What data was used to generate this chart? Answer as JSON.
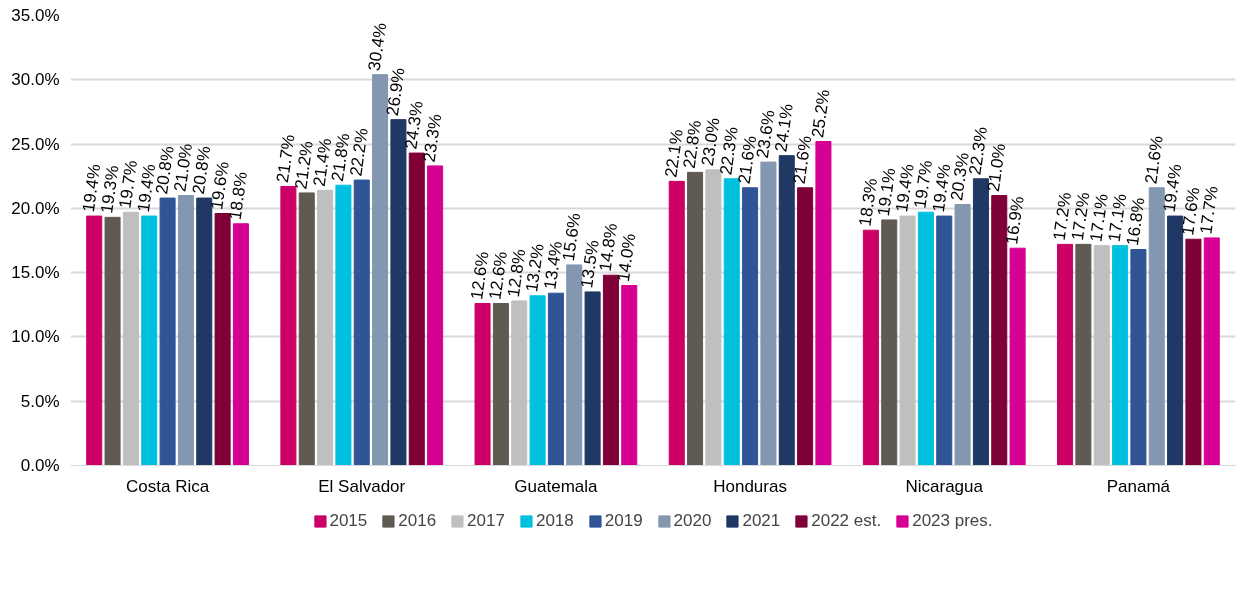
{
  "chart_data": {
    "type": "bar",
    "categories": [
      "Costa Rica",
      "El Salvador",
      "Guatemala",
      "Honduras",
      "Nicaragua",
      "Panamá"
    ],
    "ylim": [
      0,
      35
    ],
    "yticks": [
      {
        "value": 0,
        "label": "0.0%"
      },
      {
        "value": 5,
        "label": "5.0%"
      },
      {
        "value": 10,
        "label": "10.0%"
      },
      {
        "value": 15,
        "label": "15.0%"
      },
      {
        "value": 20,
        "label": "20.0%"
      },
      {
        "value": 25,
        "label": "25.0%"
      },
      {
        "value": 30,
        "label": "30.0%"
      },
      {
        "value": 35,
        "label": "35.0%"
      }
    ],
    "grid": "y",
    "legend": "bottom",
    "series": [
      {
        "name": "2015",
        "color": "#cc0066",
        "values": [
          19.4,
          21.7,
          12.6,
          22.1,
          18.3,
          17.2
        ],
        "value_labels": [
          "19.4%",
          "21.7%",
          "12.6%",
          "22.1%",
          "18.3%",
          "17.2%"
        ]
      },
      {
        "name": "2016",
        "color": "#5f5b52",
        "values": [
          19.3,
          21.2,
          12.6,
          22.8,
          19.1,
          17.2
        ],
        "value_labels": [
          "19.3%",
          "21.2%",
          "12.6%",
          "22.8%",
          "19.1%",
          "17.2%"
        ]
      },
      {
        "name": "2017",
        "color": "#bfbfbf",
        "values": [
          19.7,
          21.4,
          12.8,
          23.0,
          19.4,
          17.1
        ],
        "value_labels": [
          "19.7%",
          "21.4%",
          "12.8%",
          "23.0%",
          "19.4%",
          "17.1%"
        ]
      },
      {
        "name": "2018",
        "color": "#00c0e0",
        "values": [
          19.4,
          21.8,
          13.2,
          22.3,
          19.7,
          17.1
        ],
        "value_labels": [
          "19.4%",
          "21.8%",
          "13.2%",
          "22.3%",
          "19.7%",
          "17.1%"
        ]
      },
      {
        "name": "2019",
        "color": "#2f5597",
        "values": [
          20.8,
          22.2,
          13.4,
          21.6,
          19.4,
          16.8
        ],
        "value_labels": [
          "20.8%",
          "22.2%",
          "13.4%",
          "21.6%",
          "19.4%",
          "16.8%"
        ]
      },
      {
        "name": "2020",
        "color": "#8497b0",
        "values": [
          21.0,
          30.4,
          15.6,
          23.6,
          20.3,
          21.6
        ],
        "value_labels": [
          "21.0%",
          "30.4%",
          "15.6%",
          "23.6%",
          "20.3%",
          "21.6%"
        ]
      },
      {
        "name": "2021",
        "color": "#1f3864",
        "values": [
          20.8,
          26.9,
          13.5,
          24.1,
          22.3,
          19.4
        ],
        "value_labels": [
          "20.8%",
          "26.9%",
          "13.5%",
          "24.1%",
          "22.3%",
          "19.4%"
        ]
      },
      {
        "name": "2022 est.",
        "color": "#7f0038",
        "values": [
          19.6,
          24.3,
          14.8,
          21.6,
          21.0,
          17.6
        ],
        "value_labels": [
          "19.6%",
          "24.3%",
          "14.8%",
          "21.6%",
          "21.0%",
          "17.6%"
        ]
      },
      {
        "name": "2023 pres.",
        "color": "#d60093",
        "values": [
          18.8,
          23.3,
          14.0,
          25.2,
          16.9,
          17.7
        ],
        "value_labels": [
          "18.8%",
          "23.3%",
          "14.0%",
          "25.2%",
          "16.9%",
          "17.7%"
        ]
      }
    ]
  }
}
